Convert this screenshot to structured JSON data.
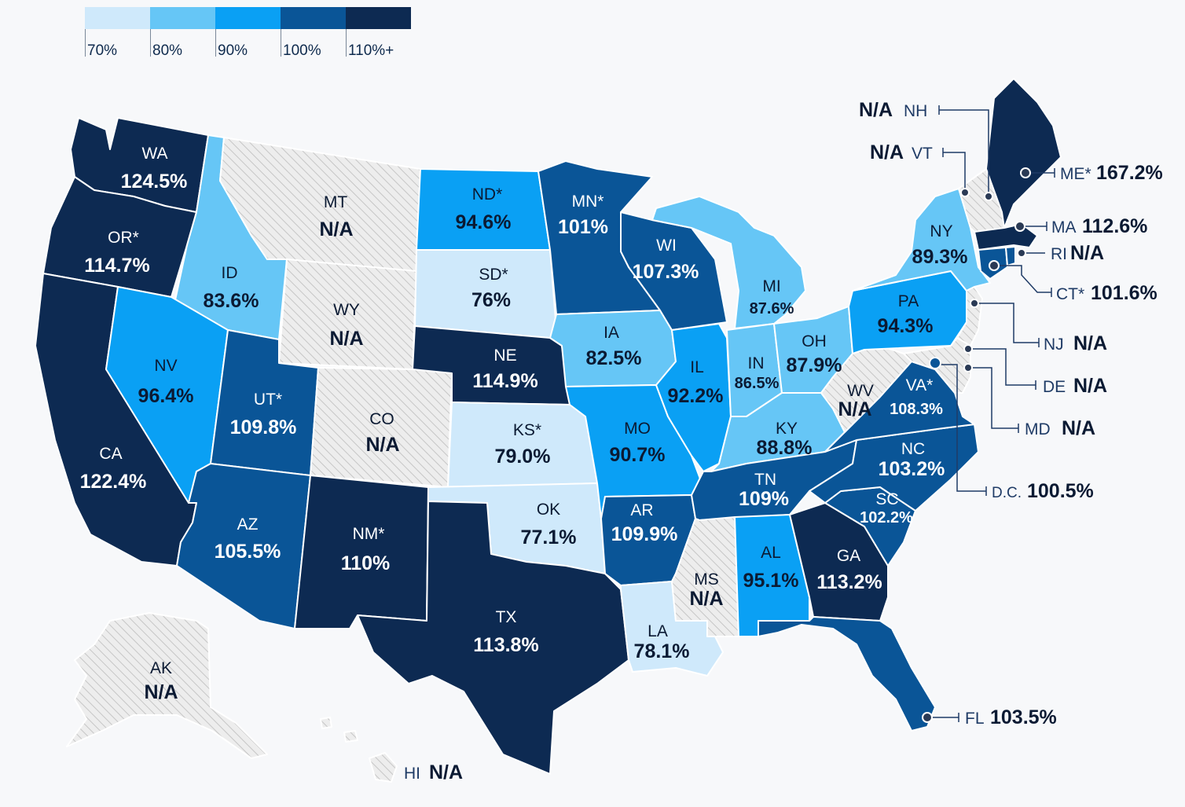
{
  "legend": {
    "colors": [
      "#cfe9fb",
      "#66c6f6",
      "#0aa0f4",
      "#0a5597",
      "#0d2a52"
    ],
    "labels": [
      "70%",
      "80%",
      "90%",
      "100%",
      "110%+"
    ]
  },
  "states": {
    "WA": {
      "abbr": "WA",
      "value": "124.5%"
    },
    "OR": {
      "abbr": "OR*",
      "value": "114.7%"
    },
    "CA": {
      "abbr": "CA",
      "value": "122.4%"
    },
    "ID": {
      "abbr": "ID",
      "value": "83.6%"
    },
    "NV": {
      "abbr": "NV",
      "value": "96.4%"
    },
    "MT": {
      "abbr": "MT",
      "value": "N/A"
    },
    "WY": {
      "abbr": "WY",
      "value": "N/A"
    },
    "UT": {
      "abbr": "UT*",
      "value": "109.8%"
    },
    "AZ": {
      "abbr": "AZ",
      "value": "105.5%"
    },
    "CO": {
      "abbr": "CO",
      "value": "N/A"
    },
    "NM": {
      "abbr": "NM*",
      "value": "110%"
    },
    "ND": {
      "abbr": "ND*",
      "value": "94.6%"
    },
    "SD": {
      "abbr": "SD*",
      "value": "76%"
    },
    "NE": {
      "abbr": "NE",
      "value": "114.9%"
    },
    "KS": {
      "abbr": "KS*",
      "value": "79.0%"
    },
    "OK": {
      "abbr": "OK",
      "value": "77.1%"
    },
    "TX": {
      "abbr": "TX",
      "value": "113.8%"
    },
    "MN": {
      "abbr": "MN*",
      "value": "101%"
    },
    "IA": {
      "abbr": "IA",
      "value": "82.5%"
    },
    "MO": {
      "abbr": "MO",
      "value": "90.7%"
    },
    "AR": {
      "abbr": "AR",
      "value": "109.9%"
    },
    "LA": {
      "abbr": "LA",
      "value": "78.1%"
    },
    "WI": {
      "abbr": "WI",
      "value": "107.3%"
    },
    "IL": {
      "abbr": "IL",
      "value": "92.2%"
    },
    "MI": {
      "abbr": "MI",
      "value": "87.6%"
    },
    "IN": {
      "abbr": "IN",
      "value": "86.5%"
    },
    "OH": {
      "abbr": "OH",
      "value": "87.9%"
    },
    "KY": {
      "abbr": "KY",
      "value": "88.8%"
    },
    "TN": {
      "abbr": "TN",
      "value": "109%"
    },
    "MS": {
      "abbr": "MS",
      "value": "N/A"
    },
    "AL": {
      "abbr": "AL",
      "value": "95.1%"
    },
    "GA": {
      "abbr": "GA",
      "value": "113.2%"
    },
    "FL": {
      "abbr": "FL",
      "value": "103.5%"
    },
    "SC": {
      "abbr": "SC",
      "value": "102.2%"
    },
    "NC": {
      "abbr": "NC",
      "value": "103.2%"
    },
    "VA": {
      "abbr": "VA*",
      "value": "108.3%"
    },
    "WV": {
      "abbr": "WV",
      "value": "N/A"
    },
    "PA": {
      "abbr": "PA",
      "value": "94.3%"
    },
    "NY": {
      "abbr": "NY",
      "value": "89.3%"
    },
    "AK": {
      "abbr": "AK",
      "value": "N/A"
    },
    "HI": {
      "abbr": "HI",
      "value": "N/A"
    },
    "NH": {
      "abbr": "NH",
      "value": "N/A"
    },
    "VT": {
      "abbr": "VT",
      "value": "N/A"
    },
    "ME": {
      "abbr": "ME*",
      "value": "167.2%"
    },
    "MA": {
      "abbr": "MA",
      "value": "112.6%"
    },
    "RI": {
      "abbr": "RI",
      "value": "N/A"
    },
    "CT": {
      "abbr": "CT*",
      "value": "101.6%"
    },
    "NJ": {
      "abbr": "NJ",
      "value": "N/A"
    },
    "DE": {
      "abbr": "DE",
      "value": "N/A"
    },
    "MD": {
      "abbr": "MD",
      "value": "N/A"
    },
    "DC": {
      "abbr": "D.C.",
      "value": "100.5%"
    }
  },
  "fills": {
    "l1": "#cfe9fb",
    "l2": "#66c6f6",
    "l3": "#0aa0f4",
    "l4": "#0a5597",
    "l5": "#0d2a52",
    "na": "#ececec",
    "hatch": "#c4c4c4",
    "border": "#ffffff"
  }
}
